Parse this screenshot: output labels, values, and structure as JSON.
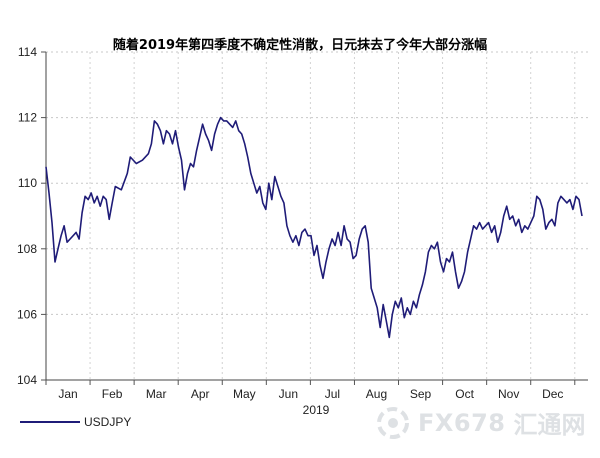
{
  "chart_data": {
    "type": "line",
    "title": "随着2019年第四季度不确定性消散，日元抹去了今年大部分涨幅",
    "xlabel": "2019",
    "ylabel": "",
    "ylim": [
      104,
      114
    ],
    "y_ticks": [
      104,
      106,
      108,
      110,
      112,
      114
    ],
    "x_ticks": [
      "Jan",
      "Feb",
      "Mar",
      "Apr",
      "May",
      "Jun",
      "Jul",
      "Aug",
      "Sep",
      "Oct",
      "Nov",
      "Dec"
    ],
    "grid": true,
    "legend_position": "bottom-left",
    "series": [
      {
        "name": "USDJPY",
        "color": "#1f1c78",
        "points": [
          [
            0.0,
            110.5
          ],
          [
            0.1,
            109.7
          ],
          [
            0.2,
            108.8
          ],
          [
            0.3,
            107.6
          ],
          [
            0.4,
            108.0
          ],
          [
            0.5,
            108.4
          ],
          [
            0.6,
            108.7
          ],
          [
            0.7,
            108.2
          ],
          [
            0.8,
            108.3
          ],
          [
            1.0,
            108.5
          ],
          [
            1.1,
            108.3
          ],
          [
            1.2,
            109.1
          ],
          [
            1.3,
            109.6
          ],
          [
            1.4,
            109.5
          ],
          [
            1.5,
            109.7
          ],
          [
            1.6,
            109.4
          ],
          [
            1.7,
            109.6
          ],
          [
            1.8,
            109.3
          ],
          [
            1.9,
            109.6
          ],
          [
            2.0,
            109.5
          ],
          [
            2.1,
            108.9
          ],
          [
            2.2,
            109.4
          ],
          [
            2.3,
            109.9
          ],
          [
            2.5,
            109.8
          ],
          [
            2.7,
            110.3
          ],
          [
            2.8,
            110.8
          ],
          [
            3.0,
            110.6
          ],
          [
            3.2,
            110.7
          ],
          [
            3.4,
            110.9
          ],
          [
            3.5,
            111.2
          ],
          [
            3.6,
            111.9
          ],
          [
            3.7,
            111.8
          ],
          [
            3.8,
            111.6
          ],
          [
            3.9,
            111.2
          ],
          [
            4.0,
            111.6
          ],
          [
            4.1,
            111.5
          ],
          [
            4.2,
            111.2
          ],
          [
            4.3,
            111.6
          ],
          [
            4.4,
            111.1
          ],
          [
            4.5,
            110.7
          ],
          [
            4.6,
            109.8
          ],
          [
            4.7,
            110.3
          ],
          [
            4.8,
            110.6
          ],
          [
            4.9,
            110.5
          ],
          [
            5.0,
            111.0
          ],
          [
            5.1,
            111.4
          ],
          [
            5.2,
            111.8
          ],
          [
            5.3,
            111.5
          ],
          [
            5.4,
            111.3
          ],
          [
            5.5,
            111.0
          ],
          [
            5.6,
            111.5
          ],
          [
            5.7,
            111.8
          ],
          [
            5.8,
            112.0
          ],
          [
            5.9,
            111.9
          ],
          [
            6.0,
            111.9
          ],
          [
            6.1,
            111.8
          ],
          [
            6.2,
            111.7
          ],
          [
            6.3,
            111.9
          ],
          [
            6.4,
            111.6
          ],
          [
            6.5,
            111.5
          ],
          [
            6.6,
            111.2
          ],
          [
            6.7,
            110.8
          ],
          [
            6.8,
            110.3
          ],
          [
            6.9,
            110.0
          ],
          [
            7.0,
            109.7
          ],
          [
            7.1,
            109.9
          ],
          [
            7.2,
            109.4
          ],
          [
            7.3,
            109.2
          ],
          [
            7.4,
            110.0
          ],
          [
            7.5,
            109.5
          ],
          [
            7.6,
            110.2
          ],
          [
            7.7,
            109.9
          ],
          [
            7.8,
            109.6
          ],
          [
            7.9,
            109.4
          ],
          [
            8.0,
            108.7
          ],
          [
            8.1,
            108.4
          ],
          [
            8.2,
            108.2
          ],
          [
            8.3,
            108.4
          ],
          [
            8.4,
            108.1
          ],
          [
            8.5,
            108.5
          ],
          [
            8.6,
            108.6
          ],
          [
            8.7,
            108.4
          ],
          [
            8.8,
            108.4
          ],
          [
            8.9,
            107.8
          ],
          [
            9.0,
            108.1
          ],
          [
            9.1,
            107.5
          ],
          [
            9.2,
            107.1
          ],
          [
            9.3,
            107.6
          ],
          [
            9.4,
            108.0
          ],
          [
            9.5,
            108.3
          ],
          [
            9.6,
            108.1
          ],
          [
            9.7,
            108.5
          ],
          [
            9.8,
            108.1
          ],
          [
            9.9,
            108.7
          ],
          [
            10.0,
            108.3
          ],
          [
            10.1,
            108.2
          ],
          [
            10.2,
            107.7
          ],
          [
            10.3,
            107.8
          ],
          [
            10.4,
            108.3
          ],
          [
            10.5,
            108.6
          ],
          [
            10.6,
            108.7
          ],
          [
            10.7,
            108.2
          ],
          [
            10.8,
            106.8
          ],
          [
            10.9,
            106.5
          ],
          [
            11.0,
            106.2
          ],
          [
            11.1,
            105.6
          ],
          [
            11.2,
            106.3
          ],
          [
            11.3,
            105.8
          ],
          [
            11.4,
            105.3
          ],
          [
            11.5,
            106.0
          ],
          [
            11.6,
            106.4
          ],
          [
            11.7,
            106.2
          ],
          [
            11.8,
            106.5
          ],
          [
            11.9,
            105.9
          ],
          [
            12.0,
            106.2
          ],
          [
            12.1,
            106.0
          ],
          [
            12.2,
            106.4
          ],
          [
            12.3,
            106.2
          ],
          [
            12.4,
            106.6
          ],
          [
            12.5,
            106.9
          ],
          [
            12.6,
            107.3
          ],
          [
            12.7,
            107.9
          ],
          [
            12.8,
            108.1
          ],
          [
            12.9,
            108.0
          ],
          [
            13.0,
            108.2
          ],
          [
            13.1,
            107.6
          ],
          [
            13.2,
            107.3
          ],
          [
            13.3,
            107.7
          ],
          [
            13.4,
            107.6
          ],
          [
            13.5,
            107.9
          ],
          [
            13.6,
            107.3
          ],
          [
            13.7,
            106.8
          ],
          [
            13.8,
            107.0
          ],
          [
            13.9,
            107.3
          ],
          [
            14.0,
            107.9
          ],
          [
            14.1,
            108.3
          ],
          [
            14.2,
            108.7
          ],
          [
            14.3,
            108.6
          ],
          [
            14.4,
            108.8
          ],
          [
            14.5,
            108.6
          ],
          [
            14.6,
            108.7
          ],
          [
            14.7,
            108.8
          ],
          [
            14.8,
            108.5
          ],
          [
            14.9,
            108.7
          ],
          [
            15.0,
            108.2
          ],
          [
            15.1,
            108.5
          ],
          [
            15.2,
            109.0
          ],
          [
            15.3,
            109.3
          ],
          [
            15.4,
            108.9
          ],
          [
            15.5,
            109.0
          ],
          [
            15.6,
            108.7
          ],
          [
            15.7,
            108.9
          ],
          [
            15.8,
            108.5
          ],
          [
            15.9,
            108.7
          ],
          [
            16.0,
            108.6
          ],
          [
            16.1,
            108.8
          ],
          [
            16.2,
            109.0
          ],
          [
            16.3,
            109.6
          ],
          [
            16.4,
            109.5
          ],
          [
            16.5,
            109.2
          ],
          [
            16.6,
            108.6
          ],
          [
            16.7,
            108.8
          ],
          [
            16.8,
            108.9
          ],
          [
            16.9,
            108.7
          ],
          [
            17.0,
            109.4
          ],
          [
            17.1,
            109.6
          ],
          [
            17.2,
            109.5
          ],
          [
            17.3,
            109.4
          ],
          [
            17.4,
            109.5
          ],
          [
            17.5,
            109.2
          ],
          [
            17.6,
            109.6
          ],
          [
            17.7,
            109.5
          ],
          [
            17.8,
            109.0
          ]
        ]
      }
    ]
  },
  "legend": {
    "label": "USDJPY"
  },
  "watermark": {
    "brand": "FX678",
    "cn": "汇通网"
  }
}
